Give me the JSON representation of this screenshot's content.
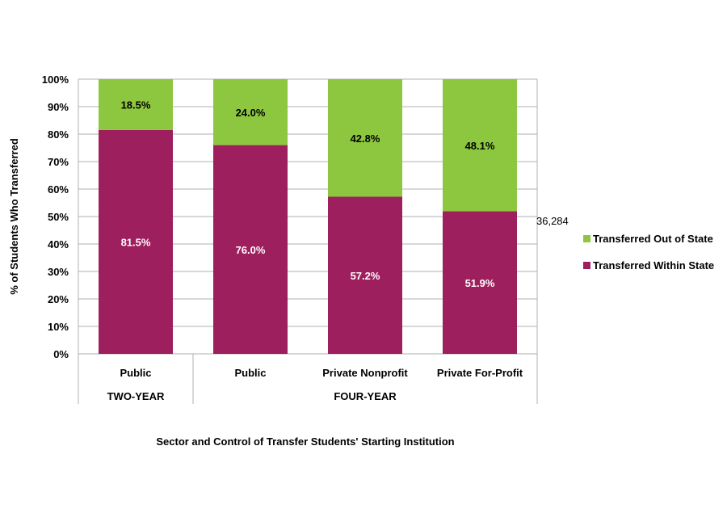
{
  "chart_data": {
    "type": "bar",
    "stacked": true,
    "categories": [
      "Public",
      "Public",
      "Private Nonprofit",
      "Private For-Profit"
    ],
    "groups": [
      {
        "label": "TWO-YEAR",
        "categories": [
          "Public"
        ]
      },
      {
        "label": "FOUR-YEAR",
        "categories": [
          "Public",
          "Private Nonprofit",
          "Private For-Profit"
        ]
      }
    ],
    "series": [
      {
        "name": "Transferred Within State",
        "values": [
          81.5,
          76.0,
          57.2,
          51.9
        ],
        "labels": [
          "81.5%",
          "76.0%",
          "57.2%",
          "51.9%"
        ],
        "color": "#9e1f5e"
      },
      {
        "name": "Transferred Out of State",
        "values": [
          18.5,
          24.0,
          42.8,
          48.1
        ],
        "labels": [
          "18.5%",
          "24.0%",
          "42.8%",
          "48.1%"
        ],
        "color": "#8dc63f"
      }
    ],
    "xlabel": "Sector and Control of Transfer Students' Starting Institution",
    "ylabel": "% of Students Who Transferred",
    "ylim": [
      0,
      100
    ],
    "yticks": [
      "0%",
      "10%",
      "20%",
      "30%",
      "40%",
      "50%",
      "60%",
      "70%",
      "80%",
      "90%",
      "100%"
    ],
    "grid": true,
    "legend": "right",
    "annotation": "36,284"
  }
}
